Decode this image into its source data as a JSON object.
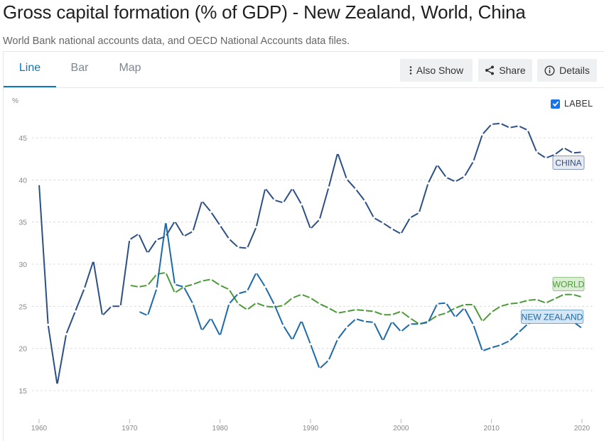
{
  "header": {
    "title": "Gross capital formation (% of GDP) - New Zealand, World, China",
    "subtitle": "World Bank national accounts data, and OECD National Accounts data files."
  },
  "tabs": [
    {
      "label": "Line",
      "active": true
    },
    {
      "label": "Bar",
      "active": false
    },
    {
      "label": "Map",
      "active": false
    }
  ],
  "toolbar": {
    "also_show": "Also Show",
    "share": "Share",
    "details": "Details"
  },
  "label_toggle": {
    "label": "LABEL",
    "checked": true
  },
  "chart_data": {
    "type": "line",
    "ylabel": "%",
    "ylim": [
      13.5,
      48
    ],
    "yticks": [
      15,
      20,
      25,
      30,
      35,
      40,
      45
    ],
    "xlim": [
      1959,
      2022
    ],
    "xticks": [
      1960,
      1970,
      1980,
      1990,
      2000,
      2010,
      2020
    ],
    "grid": true,
    "series": [
      {
        "name": "CHINA",
        "color": "#2c4f86",
        "label_bg": "#e8eaf2",
        "x": [
          1960,
          1961,
          1962,
          1963,
          1964,
          1965,
          1966,
          1967,
          1968,
          1969,
          1970,
          1971,
          1972,
          1973,
          1974,
          1975,
          1976,
          1977,
          1978,
          1979,
          1980,
          1981,
          1982,
          1983,
          1984,
          1985,
          1986,
          1987,
          1988,
          1989,
          1990,
          1991,
          1992,
          1993,
          1994,
          1995,
          1996,
          1997,
          1998,
          1999,
          2000,
          2001,
          2002,
          2003,
          2004,
          2005,
          2006,
          2007,
          2008,
          2009,
          2010,
          2011,
          2012,
          2013,
          2014,
          2015,
          2016,
          2017,
          2018,
          2019,
          2020
        ],
        "values": [
          39.5,
          22.8,
          15.7,
          21.7,
          24.4,
          27.1,
          30.4,
          23.9,
          25.0,
          25.0,
          32.9,
          33.6,
          31.3,
          32.9,
          33.3,
          35.1,
          33.3,
          33.9,
          37.5,
          36.2,
          34.6,
          33.0,
          32.0,
          31.9,
          34.4,
          39.0,
          37.6,
          37.3,
          39.0,
          37.1,
          34.2,
          35.3,
          39.1,
          43.2,
          40.1,
          38.9,
          37.5,
          35.5,
          34.9,
          34.2,
          33.6,
          35.5,
          36.1,
          39.6,
          41.8,
          40.3,
          39.8,
          40.4,
          42.2,
          45.4,
          46.6,
          46.7,
          46.2,
          46.4,
          45.9,
          43.3,
          42.6,
          43.0,
          43.8,
          43.2,
          43.3
        ]
      },
      {
        "name": "WORLD",
        "color": "#4c9a38",
        "label_bg": "#dcedd6",
        "x": [
          1970,
          1971,
          1972,
          1973,
          1974,
          1975,
          1976,
          1977,
          1978,
          1979,
          1980,
          1981,
          1982,
          1983,
          1984,
          1985,
          1986,
          1987,
          1988,
          1989,
          1990,
          1991,
          1992,
          1993,
          1994,
          1995,
          1996,
          1997,
          1998,
          1999,
          2000,
          2001,
          2002,
          2003,
          2004,
          2005,
          2006,
          2007,
          2008,
          2009,
          2010,
          2011,
          2012,
          2013,
          2014,
          2015,
          2016,
          2017,
          2018,
          2019,
          2020
        ],
        "values": [
          27.5,
          27.3,
          27.5,
          28.8,
          29.0,
          26.6,
          27.3,
          27.6,
          28.0,
          28.2,
          27.5,
          27.0,
          25.3,
          24.6,
          25.4,
          25.0,
          24.9,
          25.1,
          26.0,
          26.4,
          26.0,
          25.3,
          24.8,
          24.2,
          24.4,
          24.6,
          24.5,
          24.4,
          24.0,
          24.0,
          24.4,
          23.6,
          22.9,
          23.2,
          23.9,
          24.2,
          24.8,
          25.2,
          25.2,
          23.2,
          24.3,
          25.0,
          25.3,
          25.4,
          25.7,
          25.8,
          25.4,
          25.9,
          26.4,
          26.4,
          26.1
        ]
      },
      {
        "name": "NEW ZEALAND",
        "color": "#1c6aa9",
        "label_bg": "#d6e6f4",
        "x": [
          1971,
          1972,
          1973,
          1974,
          1975,
          1976,
          1977,
          1978,
          1979,
          1980,
          1981,
          1982,
          1983,
          1984,
          1985,
          1986,
          1987,
          1988,
          1989,
          1990,
          1991,
          1992,
          1993,
          1994,
          1995,
          1996,
          1997,
          1998,
          1999,
          2000,
          2001,
          2002,
          2003,
          2004,
          2005,
          2006,
          2007,
          2008,
          2009,
          2010,
          2011,
          2012,
          2013,
          2014,
          2015,
          2016,
          2017,
          2018,
          2019,
          2020
        ],
        "values": [
          24.4,
          23.9,
          27.1,
          35.0,
          27.6,
          27.3,
          25.3,
          22.1,
          23.6,
          21.5,
          25.3,
          26.5,
          26.8,
          29.0,
          27.3,
          25.2,
          22.7,
          21.0,
          23.3,
          20.5,
          17.6,
          18.6,
          21.1,
          22.5,
          23.5,
          23.2,
          23.1,
          20.9,
          23.2,
          22.0,
          22.9,
          22.9,
          23.1,
          25.3,
          25.4,
          23.7,
          24.8,
          22.8,
          19.7,
          20.1,
          20.4,
          20.9,
          21.9,
          22.9,
          23.4,
          23.8,
          23.2,
          23.5,
          23.2,
          22.4
        ]
      }
    ]
  }
}
